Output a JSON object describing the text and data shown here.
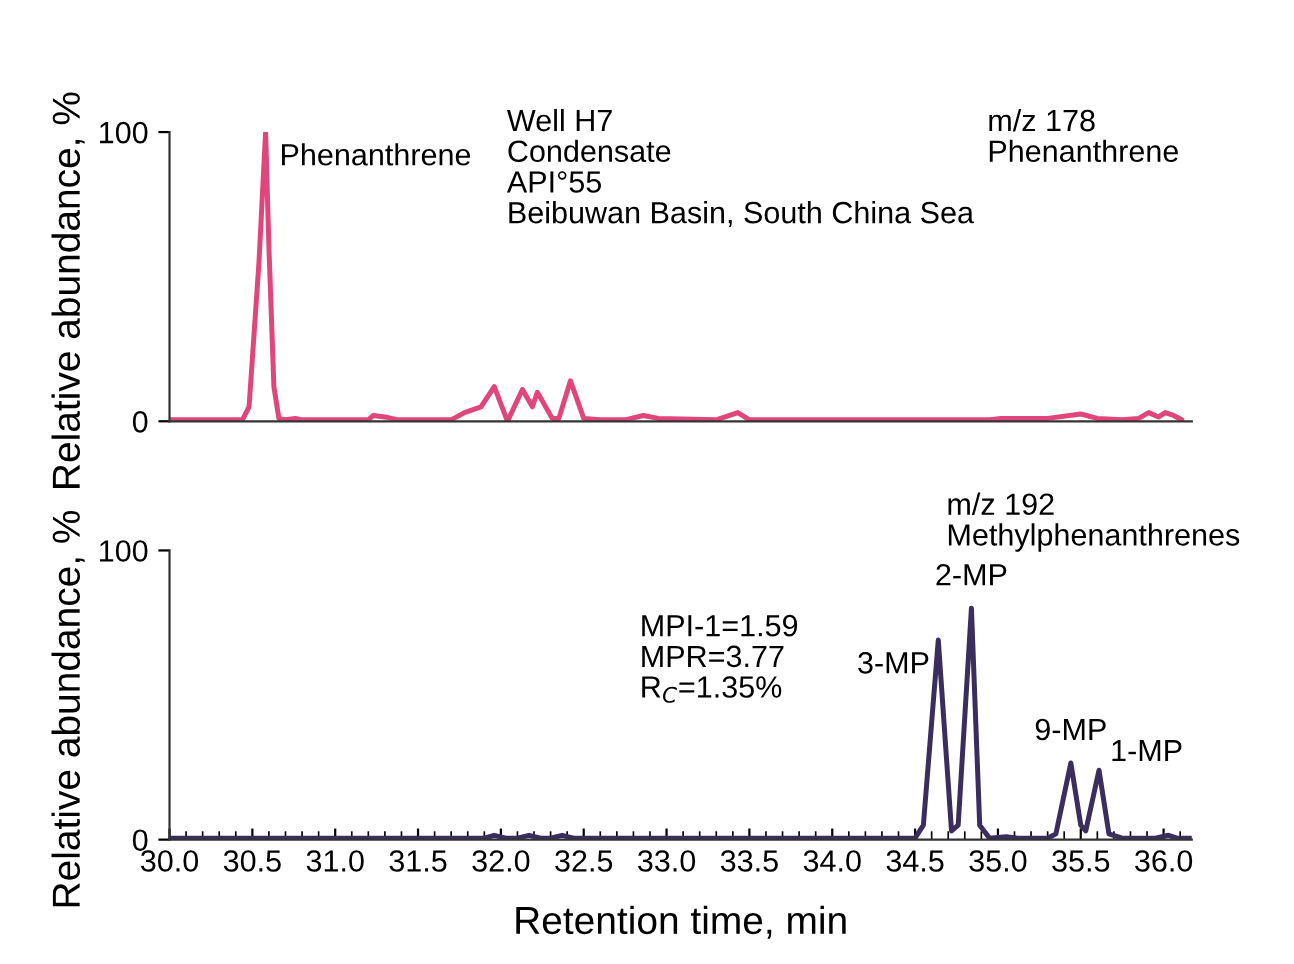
{
  "chart_data": [
    {
      "type": "line",
      "ylabel": "Relative abundance, %",
      "xlim": [
        30,
        36.17
      ],
      "ylim": [
        0,
        100
      ],
      "yticks": [
        0,
        100
      ],
      "tick_labels": "y",
      "grid": false,
      "marker": "none",
      "line_style": "solid",
      "series": [
        {
          "color": "#e0457b",
          "x": [
            30.0,
            30.44,
            30.48,
            30.54,
            30.58,
            30.6,
            30.63,
            30.66,
            30.7,
            30.76,
            30.8,
            31.2,
            31.23,
            31.3,
            31.38,
            31.7,
            31.78,
            31.88,
            31.96,
            32.04,
            32.13,
            32.19,
            32.22,
            32.31,
            32.35,
            32.42,
            32.5,
            32.6,
            32.75,
            32.86,
            32.95,
            33.3,
            33.43,
            33.5,
            33.64,
            34.95,
            35.02,
            35.3,
            35.5,
            35.6,
            35.75,
            35.85,
            35.91,
            35.97,
            36.01,
            36.06,
            36.11
          ],
          "values": [
            0.5,
            0.5,
            5,
            55,
            100,
            60,
            12,
            1,
            0.5,
            1,
            0.5,
            0.5,
            2,
            1.5,
            0.5,
            0.5,
            3,
            5,
            12,
            0,
            11,
            5,
            10,
            1,
            1,
            14,
            1,
            0.5,
            0.5,
            2,
            1,
            0.5,
            3,
            0.5,
            0.5,
            0.5,
            1,
            1,
            2.5,
            1,
            0.5,
            1,
            3,
            1.5,
            3,
            2,
            0.5
          ]
        }
      ],
      "annotations": [
        {
          "text": "Phenanthrene",
          "x": 30.58,
          "y": 100
        },
        "Well H7\nCondensate\nAPI°55\nBeibuwan Basin, South China Sea",
        "m/z 178\nPhenanthrene"
      ]
    },
    {
      "type": "line",
      "ylabel": "Relative abundance, %",
      "xlabel": "Retention time, min",
      "xlim": [
        30,
        36.17
      ],
      "ylim": [
        0,
        100
      ],
      "yticks": [
        0,
        100
      ],
      "xticks": [
        {
          "value": 30,
          "label": "30.0"
        },
        {
          "value": 30.5,
          "label": "30.5"
        },
        {
          "value": 31,
          "label": "31.0"
        },
        {
          "value": 31.5,
          "label": "31.5"
        },
        {
          "value": 32,
          "label": "32.0"
        },
        {
          "value": 32.5,
          "label": "32.5"
        },
        {
          "value": 33,
          "label": "33.0"
        },
        {
          "value": 33.5,
          "label": "33.5"
        },
        {
          "value": 34,
          "label": "34.0"
        },
        {
          "value": 34.5,
          "label": "34.5"
        },
        {
          "value": 35,
          "label": "35.0"
        },
        {
          "value": 35.5,
          "label": "35.5"
        },
        {
          "value": 36,
          "label": "36.0"
        }
      ],
      "grid": false,
      "marker": "none",
      "line_style": "solid",
      "series": [
        {
          "color": "#3b2d5e",
          "x": [
            30.0,
            31.9,
            31.96,
            32.03,
            32.1,
            32.17,
            32.24,
            32.3,
            32.37,
            32.44,
            32.5,
            34.5,
            34.55,
            34.64,
            34.72,
            34.76,
            34.84,
            34.89,
            34.95,
            35.05,
            35.12,
            35.3,
            35.35,
            35.44,
            35.5,
            35.53,
            35.61,
            35.67,
            35.75,
            35.95,
            36.03,
            36.08,
            36.17
          ],
          "values": [
            0.5,
            0.5,
            1.5,
            0.5,
            0.5,
            1.5,
            0.5,
            0.5,
            1.5,
            0.5,
            0.5,
            0.5,
            5,
            69,
            3,
            5,
            80,
            5,
            0.5,
            1,
            0.5,
            0.5,
            2,
            26.5,
            5,
            3,
            24,
            2,
            0.5,
            0.5,
            1.5,
            0.5,
            0.5
          ]
        }
      ],
      "annotations": [
        "m/z 192\nMethylphenanthrenes",
        "MPI-1=1.59\nMPR=3.77\nR$_{C}$=1.35%",
        {
          "text": "3-MP",
          "x": 34.64,
          "y": 69
        },
        {
          "text": "2-MP",
          "x": 34.84,
          "y": 80
        },
        {
          "text": "9-MP",
          "x": 35.44,
          "y": 26.5
        },
        {
          "text": "1-MP",
          "x": 35.61,
          "y": 24
        }
      ]
    }
  ]
}
